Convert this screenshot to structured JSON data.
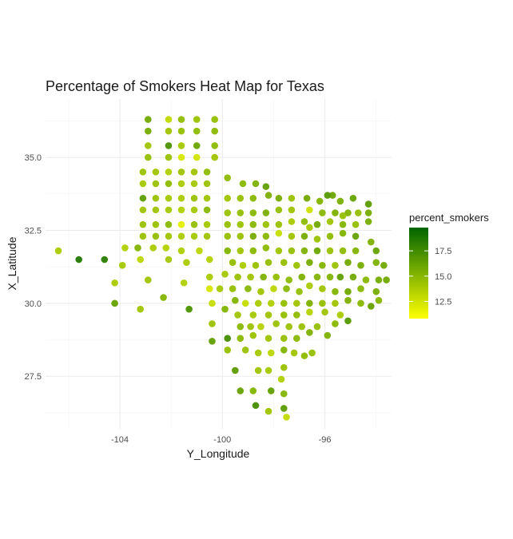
{
  "chart_data": {
    "type": "scatter",
    "title": "Percentage of Smokers Heat Map for Texas",
    "xlabel": "Y_Longitude",
    "ylabel": "X_Latitude",
    "xlim": [
      -106.9,
      -93.4
    ],
    "ylim": [
      25.7,
      37.0
    ],
    "x_ticks": [
      -104,
      -100,
      -96
    ],
    "x_tick_labels": [
      "-104",
      "-100",
      "-96"
    ],
    "y_ticks": [
      27.5,
      30.0,
      32.5,
      35.0
    ],
    "y_tick_labels": [
      "27.5",
      "30.0",
      "32.5",
      "35.0"
    ],
    "legend": {
      "title": "percent_smokers",
      "range": [
        10.8,
        19.8
      ],
      "ticks": [
        12.5,
        15.0,
        17.5
      ],
      "tick_labels": [
        "12.5",
        "15.0",
        "17.5"
      ],
      "low_color": "#ffff00",
      "high_color": "#006400"
    },
    "points": [
      [
        -106.4,
        31.8,
        13.8
      ],
      [
        -105.6,
        31.5,
        18.6
      ],
      [
        -104.6,
        31.5,
        18.4
      ],
      [
        -104.2,
        30.7,
        13.8
      ],
      [
        -104.2,
        30.0,
        16.2
      ],
      [
        -103.2,
        29.8,
        14.2
      ],
      [
        -103.9,
        31.3,
        14.0
      ],
      [
        -103.8,
        31.9,
        13.6
      ],
      [
        -103.3,
        31.9,
        15.2
      ],
      [
        -103.2,
        31.5,
        13.2
      ],
      [
        -102.9,
        30.8,
        14.2
      ],
      [
        -102.3,
        30.2,
        15.2
      ],
      [
        -102.7,
        31.9,
        13.8
      ],
      [
        -102.2,
        31.9,
        13.5
      ],
      [
        -102.1,
        31.5,
        14.0
      ],
      [
        -101.6,
        31.8,
        13.7
      ],
      [
        -101.4,
        31.4,
        13.8
      ],
      [
        -101.5,
        30.7,
        13.6
      ],
      [
        -101.3,
        29.8,
        17.2
      ],
      [
        -100.9,
        31.8,
        13.2
      ],
      [
        -100.5,
        31.5,
        13.5
      ],
      [
        -100.5,
        30.9,
        13.9
      ],
      [
        -100.5,
        30.5,
        12.3
      ],
      [
        -100.4,
        30.0,
        12.8
      ],
      [
        -102.9,
        36.3,
        15.8
      ],
      [
        -102.1,
        36.3,
        13.0
      ],
      [
        -101.6,
        36.3,
        14.7
      ],
      [
        -101.0,
        36.3,
        14.4
      ],
      [
        -100.3,
        36.3,
        14.6
      ],
      [
        -102.9,
        35.9,
        15.6
      ],
      [
        -102.1,
        35.9,
        14.2
      ],
      [
        -101.6,
        35.9,
        14.5
      ],
      [
        -101.0,
        35.9,
        14.8
      ],
      [
        -100.3,
        35.9,
        14.9
      ],
      [
        -102.9,
        35.4,
        14.2
      ],
      [
        -102.1,
        35.4,
        17.2
      ],
      [
        -101.6,
        35.4,
        14.0
      ],
      [
        -101.0,
        35.4,
        16.1
      ],
      [
        -100.3,
        35.4,
        14.8
      ],
      [
        -102.9,
        35.0,
        14.6
      ],
      [
        -102.1,
        35.0,
        14.4
      ],
      [
        -101.6,
        35.0,
        12.2
      ],
      [
        -101.0,
        35.0,
        12.4
      ],
      [
        -100.3,
        35.0,
        14.2
      ],
      [
        -103.1,
        34.5,
        14.4
      ],
      [
        -102.6,
        34.5,
        14.2
      ],
      [
        -102.1,
        34.5,
        13.6
      ],
      [
        -101.6,
        34.5,
        14.3
      ],
      [
        -101.1,
        34.5,
        14.2
      ],
      [
        -100.6,
        34.5,
        14.8
      ],
      [
        -103.1,
        34.1,
        14.0
      ],
      [
        -102.6,
        34.1,
        14.4
      ],
      [
        -102.1,
        34.1,
        14.8
      ],
      [
        -101.6,
        34.1,
        13.8
      ],
      [
        -101.1,
        34.1,
        14.0
      ],
      [
        -100.6,
        34.1,
        14.4
      ],
      [
        -103.1,
        33.6,
        16.5
      ],
      [
        -102.6,
        33.6,
        14.4
      ],
      [
        -102.1,
        33.6,
        14.0
      ],
      [
        -101.6,
        33.6,
        13.8
      ],
      [
        -101.1,
        33.6,
        14.4
      ],
      [
        -100.6,
        33.6,
        14.2
      ],
      [
        -103.1,
        33.2,
        14.2
      ],
      [
        -102.6,
        33.2,
        14.2
      ],
      [
        -102.1,
        33.2,
        14.0
      ],
      [
        -101.6,
        33.2,
        13.6
      ],
      [
        -101.1,
        33.2,
        14.0
      ],
      [
        -100.6,
        33.2,
        15.0
      ],
      [
        -103.1,
        32.7,
        14.4
      ],
      [
        -102.6,
        32.7,
        14.4
      ],
      [
        -102.1,
        32.7,
        14.9
      ],
      [
        -101.6,
        32.7,
        11.8
      ],
      [
        -101.1,
        32.7,
        14.6
      ],
      [
        -100.6,
        32.7,
        14.0
      ],
      [
        -103.1,
        32.3,
        14.4
      ],
      [
        -102.6,
        32.3,
        14.6
      ],
      [
        -102.1,
        32.3,
        14.2
      ],
      [
        -101.6,
        32.3,
        13.8
      ],
      [
        -101.1,
        32.3,
        14.0
      ],
      [
        -100.6,
        32.3,
        14.2
      ],
      [
        -99.8,
        34.3,
        14.8
      ],
      [
        -99.2,
        34.1,
        15.0
      ],
      [
        -98.7,
        34.1,
        15.4
      ],
      [
        -98.3,
        34.0,
        16.4
      ],
      [
        -99.8,
        33.6,
        14.2
      ],
      [
        -99.3,
        33.6,
        14.6
      ],
      [
        -98.8,
        33.6,
        15.0
      ],
      [
        -98.2,
        33.7,
        15.5
      ],
      [
        -97.8,
        33.6,
        15.6
      ],
      [
        -97.3,
        33.6,
        14.4
      ],
      [
        -96.7,
        33.6,
        15.8
      ],
      [
        -96.2,
        33.5,
        15.2
      ],
      [
        -95.7,
        33.7,
        16.0
      ],
      [
        -95.4,
        33.5,
        15.5
      ],
      [
        -94.9,
        33.6,
        16.2
      ],
      [
        -94.3,
        33.4,
        16.6
      ],
      [
        -95.9,
        33.7,
        16.8
      ],
      [
        -99.8,
        33.1,
        14.4
      ],
      [
        -99.3,
        33.1,
        14.6
      ],
      [
        -98.8,
        33.1,
        15.0
      ],
      [
        -98.3,
        33.1,
        15.5
      ],
      [
        -97.8,
        33.2,
        14.6
      ],
      [
        -97.3,
        33.2,
        14.2
      ],
      [
        -96.6,
        33.2,
        12.6
      ],
      [
        -96.1,
        33.1,
        15.0
      ],
      [
        -95.6,
        33.1,
        15.4
      ],
      [
        -95.1,
        33.1,
        15.2
      ],
      [
        -94.7,
        33.1,
        14.6
      ],
      [
        -94.3,
        33.1,
        15.6
      ],
      [
        -95.3,
        33.0,
        14.5
      ],
      [
        -99.8,
        32.7,
        14.6
      ],
      [
        -99.3,
        32.7,
        14.4
      ],
      [
        -98.8,
        32.7,
        15.0
      ],
      [
        -98.3,
        32.7,
        14.4
      ],
      [
        -97.8,
        32.7,
        14.4
      ],
      [
        -97.3,
        32.8,
        13.8
      ],
      [
        -96.8,
        32.8,
        14.8
      ],
      [
        -96.3,
        32.7,
        15.8
      ],
      [
        -95.8,
        32.8,
        14.2
      ],
      [
        -95.3,
        32.7,
        15.2
      ],
      [
        -94.8,
        32.7,
        14.6
      ],
      [
        -94.3,
        32.8,
        15.6
      ],
      [
        -96.6,
        32.6,
        14.0
      ],
      [
        -99.8,
        32.3,
        14.6
      ],
      [
        -99.3,
        32.3,
        14.4
      ],
      [
        -98.8,
        32.3,
        15.6
      ],
      [
        -98.3,
        32.3,
        15.0
      ],
      [
        -97.8,
        32.4,
        12.8
      ],
      [
        -97.3,
        32.3,
        14.2
      ],
      [
        -96.8,
        32.3,
        15.6
      ],
      [
        -96.3,
        32.2,
        14.4
      ],
      [
        -95.8,
        32.3,
        14.8
      ],
      [
        -95.3,
        32.4,
        15.2
      ],
      [
        -94.8,
        32.3,
        16.2
      ],
      [
        -94.2,
        32.1,
        15.4
      ],
      [
        -99.8,
        31.8,
        15.2
      ],
      [
        -99.3,
        31.8,
        14.2
      ],
      [
        -98.8,
        31.8,
        15.0
      ],
      [
        -98.3,
        31.9,
        14.8
      ],
      [
        -97.8,
        31.8,
        14.2
      ],
      [
        -97.3,
        31.8,
        14.6
      ],
      [
        -96.8,
        31.8,
        15.4
      ],
      [
        -96.3,
        31.8,
        16.0
      ],
      [
        -95.8,
        31.8,
        14.4
      ],
      [
        -95.3,
        31.8,
        14.8
      ],
      [
        -94.8,
        31.8,
        15.2
      ],
      [
        -94.0,
        31.8,
        16.2
      ],
      [
        -93.7,
        31.3,
        15.8
      ],
      [
        -99.6,
        31.4,
        14.6
      ],
      [
        -99.2,
        31.3,
        13.8
      ],
      [
        -98.7,
        31.3,
        14.4
      ],
      [
        -98.2,
        31.4,
        14.6
      ],
      [
        -97.6,
        31.4,
        14.6
      ],
      [
        -97.1,
        31.3,
        14.4
      ],
      [
        -96.6,
        31.4,
        15.6
      ],
      [
        -96.1,
        31.3,
        15.2
      ],
      [
        -95.6,
        31.3,
        14.4
      ],
      [
        -95.1,
        31.4,
        15.8
      ],
      [
        -94.6,
        31.3,
        15.6
      ],
      [
        -94.0,
        31.4,
        15.4
      ],
      [
        -99.9,
        31.0,
        14.0
      ],
      [
        -99.4,
        30.9,
        14.4
      ],
      [
        -98.9,
        30.9,
        14.2
      ],
      [
        -98.4,
        30.9,
        15.4
      ],
      [
        -97.9,
        30.9,
        14.6
      ],
      [
        -97.4,
        30.8,
        14.8
      ],
      [
        -96.9,
        30.9,
        15.4
      ],
      [
        -96.3,
        30.9,
        15.2
      ],
      [
        -95.8,
        30.9,
        15.2
      ],
      [
        -95.4,
        30.9,
        16.4
      ],
      [
        -94.9,
        30.9,
        15.8
      ],
      [
        -94.4,
        30.8,
        15.0
      ],
      [
        -93.9,
        30.8,
        15.6
      ],
      [
        -93.6,
        30.8,
        15.8
      ],
      [
        -100.1,
        30.5,
        14.0
      ],
      [
        -99.6,
        30.5,
        14.6
      ],
      [
        -99.0,
        30.5,
        15.0
      ],
      [
        -98.5,
        30.4,
        14.2
      ],
      [
        -98.0,
        30.5,
        13.2
      ],
      [
        -97.5,
        30.5,
        15.0
      ],
      [
        -97.0,
        30.4,
        14.6
      ],
      [
        -96.6,
        30.6,
        13.8
      ],
      [
        -96.1,
        30.5,
        14.2
      ],
      [
        -95.6,
        30.4,
        15.2
      ],
      [
        -95.1,
        30.4,
        15.8
      ],
      [
        -94.6,
        30.5,
        15.0
      ],
      [
        -94.0,
        30.4,
        15.6
      ],
      [
        -99.5,
        30.1,
        15.2
      ],
      [
        -99.1,
        30.0,
        12.8
      ],
      [
        -98.6,
        30.0,
        13.8
      ],
      [
        -98.1,
        30.0,
        13.6
      ],
      [
        -97.6,
        30.0,
        14.6
      ],
      [
        -97.1,
        30.0,
        14.2
      ],
      [
        -96.6,
        30.0,
        15.4
      ],
      [
        -96.1,
        30.0,
        14.6
      ],
      [
        -95.6,
        30.0,
        14.2
      ],
      [
        -95.1,
        30.1,
        15.4
      ],
      [
        -94.6,
        30.0,
        15.0
      ],
      [
        -93.9,
        30.1,
        15.0
      ],
      [
        -94.2,
        29.9,
        16.2
      ],
      [
        -99.9,
        29.8,
        15.2
      ],
      [
        -99.4,
        29.6,
        14.2
      ],
      [
        -98.8,
        29.6,
        14.0
      ],
      [
        -98.2,
        29.6,
        14.2
      ],
      [
        -97.6,
        29.6,
        14.6
      ],
      [
        -97.1,
        29.6,
        14.8
      ],
      [
        -96.6,
        29.7,
        13.4
      ],
      [
        -96.0,
        29.7,
        14.2
      ],
      [
        -95.4,
        29.6,
        13.8
      ],
      [
        -95.1,
        29.4,
        16.8
      ],
      [
        -100.4,
        29.3,
        14.4
      ],
      [
        -99.3,
        29.2,
        15.0
      ],
      [
        -98.9,
        29.2,
        14.4
      ],
      [
        -98.5,
        29.2,
        13.4
      ],
      [
        -97.9,
        29.3,
        14.4
      ],
      [
        -97.4,
        29.2,
        14.4
      ],
      [
        -96.9,
        29.2,
        14.4
      ],
      [
        -96.3,
        29.2,
        14.6
      ],
      [
        -95.6,
        29.3,
        15.0
      ],
      [
        -100.4,
        28.7,
        16.4
      ],
      [
        -99.8,
        28.8,
        17.4
      ],
      [
        -99.3,
        28.8,
        15.0
      ],
      [
        -98.8,
        28.9,
        14.4
      ],
      [
        -98.2,
        28.8,
        14.2
      ],
      [
        -97.6,
        28.8,
        14.6
      ],
      [
        -97.1,
        28.8,
        15.0
      ],
      [
        -96.6,
        29.0,
        15.4
      ],
      [
        -95.9,
        28.9,
        15.4
      ],
      [
        -99.8,
        28.4,
        14.6
      ],
      [
        -99.1,
        28.4,
        14.4
      ],
      [
        -98.6,
        28.3,
        14.0
      ],
      [
        -98.1,
        28.3,
        13.2
      ],
      [
        -97.6,
        28.4,
        15.2
      ],
      [
        -97.2,
        28.3,
        14.2
      ],
      [
        -96.8,
        28.2,
        14.8
      ],
      [
        -96.5,
        28.3,
        14.6
      ],
      [
        -99.5,
        27.7,
        16.6
      ],
      [
        -98.6,
        27.7,
        14.2
      ],
      [
        -98.2,
        27.7,
        14.0
      ],
      [
        -97.6,
        27.8,
        14.4
      ],
      [
        -97.7,
        27.4,
        13.6
      ],
      [
        -99.3,
        27.0,
        16.2
      ],
      [
        -98.8,
        27.0,
        15.2
      ],
      [
        -98.1,
        27.0,
        16.4
      ],
      [
        -97.6,
        26.9,
        15.2
      ],
      [
        -98.7,
        26.5,
        17.4
      ],
      [
        -98.2,
        26.3,
        14.2
      ],
      [
        -97.6,
        26.4,
        16.6
      ],
      [
        -97.5,
        26.1,
        13.0
      ]
    ]
  }
}
